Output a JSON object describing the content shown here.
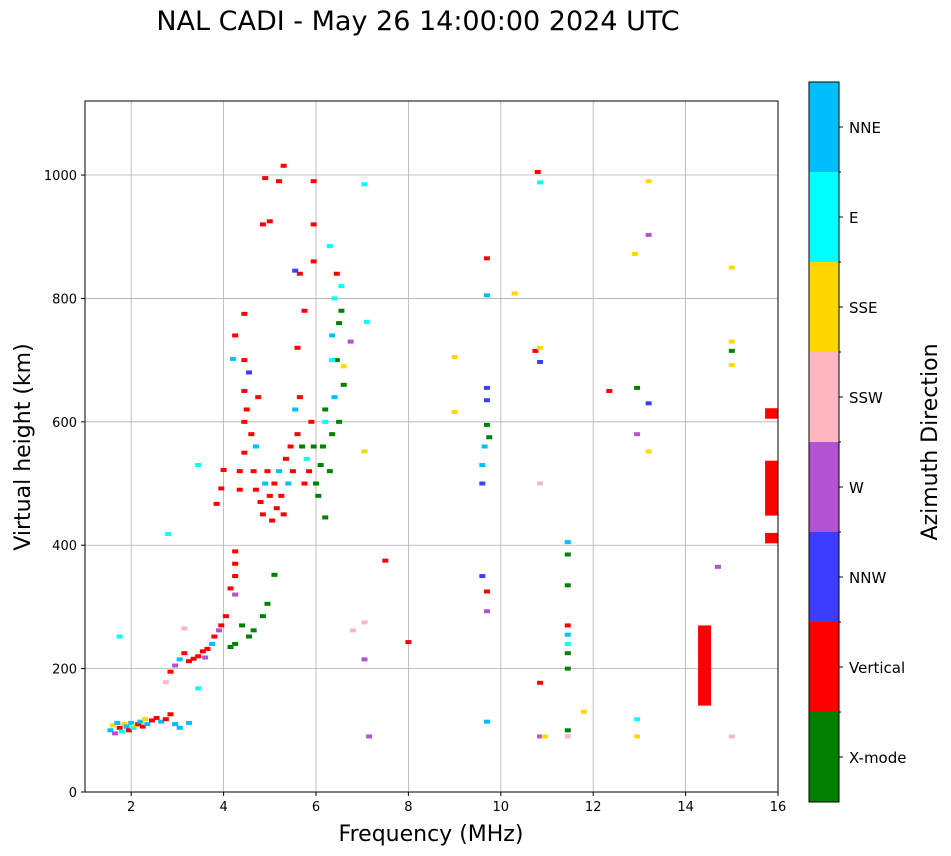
{
  "chart_data": {
    "type": "scatter",
    "title": "NAL CADI - May 26 14:00:00 2024 UTC",
    "xlabel": "Frequency (MHz)",
    "ylabel": "Virtual height (km)",
    "xlim": [
      1.0,
      16.0
    ],
    "ylim": [
      0,
      1120
    ],
    "xticks": [
      2,
      4,
      6,
      8,
      10,
      12,
      14,
      16
    ],
    "yticks": [
      0,
      200,
      400,
      600,
      800,
      1000
    ],
    "grid": true,
    "colorbar": {
      "label": "Azimuth Direction",
      "categories": [
        {
          "name": "X-mode",
          "color": "#008000"
        },
        {
          "name": "Vertical",
          "color": "#ff0000"
        },
        {
          "name": "NNW",
          "color": "#3d3dff"
        },
        {
          "name": "W",
          "color": "#b452d4"
        },
        {
          "name": "SSW",
          "color": "#ffb6c1"
        },
        {
          "name": "SSE",
          "color": "#ffd700"
        },
        {
          "name": "E",
          "color": "#00ffff"
        },
        {
          "name": "NNE",
          "color": "#00bfff"
        }
      ]
    },
    "points": [
      [
        1.55,
        100,
        "NNE"
      ],
      [
        1.6,
        108,
        "SSE"
      ],
      [
        1.65,
        95,
        "W"
      ],
      [
        1.7,
        112,
        "NNE"
      ],
      [
        1.75,
        104,
        "Vertical"
      ],
      [
        1.8,
        98,
        "E"
      ],
      [
        1.85,
        110,
        "SSE"
      ],
      [
        1.9,
        106,
        "NNE"
      ],
      [
        1.95,
        100,
        "Vertical"
      ],
      [
        2.0,
        112,
        "NNE"
      ],
      [
        2.05,
        104,
        "E"
      ],
      [
        2.1,
        108,
        "SSE"
      ],
      [
        2.15,
        110,
        "Vertical"
      ],
      [
        2.2,
        114,
        "NNE"
      ],
      [
        2.25,
        106,
        "Vertical"
      ],
      [
        2.3,
        118,
        "SSE"
      ],
      [
        2.35,
        110,
        "NNE"
      ],
      [
        2.45,
        116,
        "Vertical"
      ],
      [
        2.55,
        120,
        "Vertical"
      ],
      [
        2.65,
        114,
        "NNE"
      ],
      [
        2.75,
        118,
        "Vertical"
      ],
      [
        2.85,
        126,
        "Vertical"
      ],
      [
        2.95,
        110,
        "NNE"
      ],
      [
        3.05,
        104,
        "NNE"
      ],
      [
        3.25,
        112,
        "NNE"
      ],
      [
        1.75,
        252,
        "E"
      ],
      [
        2.8,
        418,
        "E"
      ],
      [
        3.45,
        168,
        "E"
      ],
      [
        3.45,
        530,
        "E"
      ],
      [
        2.75,
        178,
        "SSW"
      ],
      [
        2.85,
        195,
        "Vertical"
      ],
      [
        2.95,
        205,
        "W"
      ],
      [
        3.05,
        215,
        "NNE"
      ],
      [
        3.15,
        225,
        "Vertical"
      ],
      [
        3.15,
        265,
        "SSW"
      ],
      [
        3.25,
        212,
        "Vertical"
      ],
      [
        3.35,
        216,
        "Vertical"
      ],
      [
        3.45,
        220,
        "Vertical"
      ],
      [
        3.55,
        228,
        "Vertical"
      ],
      [
        3.6,
        218,
        "W"
      ],
      [
        3.65,
        232,
        "Vertical"
      ],
      [
        3.75,
        240,
        "NNE"
      ],
      [
        3.8,
        252,
        "Vertical"
      ],
      [
        3.9,
        262,
        "W"
      ],
      [
        3.95,
        270,
        "Vertical"
      ],
      [
        4.05,
        285,
        "Vertical"
      ],
      [
        4.15,
        235,
        "X-mode"
      ],
      [
        4.25,
        240,
        "X-mode"
      ],
      [
        4.25,
        320,
        "W"
      ],
      [
        4.25,
        350,
        "Vertical"
      ],
      [
        4.25,
        370,
        "Vertical"
      ],
      [
        4.25,
        390,
        "Vertical"
      ],
      [
        4.4,
        270,
        "X-mode"
      ],
      [
        4.55,
        252,
        "X-mode"
      ],
      [
        4.65,
        262,
        "X-mode"
      ],
      [
        4.85,
        285,
        "X-mode"
      ],
      [
        4.95,
        305,
        "X-mode"
      ],
      [
        5.1,
        352,
        "X-mode"
      ],
      [
        3.85,
        467,
        "Vertical"
      ],
      [
        3.95,
        492,
        "Vertical"
      ],
      [
        4.0,
        522,
        "Vertical"
      ],
      [
        4.25,
        740,
        "Vertical"
      ],
      [
        4.2,
        702,
        "NNE"
      ],
      [
        4.35,
        520,
        "Vertical"
      ],
      [
        4.35,
        490,
        "Vertical"
      ],
      [
        4.45,
        550,
        "Vertical"
      ],
      [
        4.45,
        600,
        "Vertical"
      ],
      [
        4.45,
        650,
        "Vertical"
      ],
      [
        4.45,
        700,
        "Vertical"
      ],
      [
        4.45,
        775,
        "Vertical"
      ],
      [
        4.5,
        620,
        "Vertical"
      ],
      [
        4.55,
        680,
        "NNW"
      ],
      [
        4.6,
        580,
        "Vertical"
      ],
      [
        4.65,
        520,
        "Vertical"
      ],
      [
        4.7,
        560,
        "NNE"
      ],
      [
        4.7,
        490,
        "Vertical"
      ],
      [
        4.75,
        640,
        "Vertical"
      ],
      [
        4.8,
        470,
        "Vertical"
      ],
      [
        4.85,
        450,
        "Vertical"
      ],
      [
        4.9,
        500,
        "NNE"
      ],
      [
        4.95,
        520,
        "Vertical"
      ],
      [
        5.0,
        480,
        "Vertical"
      ],
      [
        5.05,
        440,
        "Vertical"
      ],
      [
        5.1,
        500,
        "Vertical"
      ],
      [
        5.15,
        460,
        "Vertical"
      ],
      [
        5.2,
        520,
        "NNE"
      ],
      [
        5.25,
        480,
        "Vertical"
      ],
      [
        5.3,
        450,
        "Vertical"
      ],
      [
        5.35,
        540,
        "Vertical"
      ],
      [
        5.4,
        500,
        "NNE"
      ],
      [
        5.45,
        560,
        "Vertical"
      ],
      [
        5.5,
        520,
        "Vertical"
      ],
      [
        5.55,
        620,
        "NNE"
      ],
      [
        5.6,
        580,
        "Vertical"
      ],
      [
        5.65,
        640,
        "Vertical"
      ],
      [
        5.7,
        560,
        "X-mode"
      ],
      [
        5.75,
        500,
        "Vertical"
      ],
      [
        5.8,
        540,
        "E"
      ],
      [
        5.85,
        520,
        "Vertical"
      ],
      [
        5.9,
        600,
        "Vertical"
      ],
      [
        5.95,
        560,
        "X-mode"
      ],
      [
        6.0,
        500,
        "X-mode"
      ],
      [
        6.05,
        480,
        "X-mode"
      ],
      [
        6.1,
        530,
        "X-mode"
      ],
      [
        6.15,
        560,
        "X-mode"
      ],
      [
        6.2,
        600,
        "E"
      ],
      [
        6.2,
        620,
        "X-mode"
      ],
      [
        6.3,
        520,
        "X-mode"
      ],
      [
        6.35,
        580,
        "X-mode"
      ],
      [
        6.4,
        640,
        "NNE"
      ],
      [
        6.45,
        700,
        "X-mode"
      ],
      [
        6.5,
        760,
        "X-mode"
      ],
      [
        6.55,
        820,
        "E"
      ],
      [
        6.6,
        690,
        "SSE"
      ],
      [
        6.35,
        700,
        "E"
      ],
      [
        6.35,
        740,
        "NNE"
      ],
      [
        6.4,
        800,
        "E"
      ],
      [
        6.45,
        840,
        "Vertical"
      ],
      [
        6.3,
        885,
        "E"
      ],
      [
        6.55,
        780,
        "X-mode"
      ],
      [
        6.6,
        660,
        "X-mode"
      ],
      [
        6.5,
        600,
        "X-mode"
      ],
      [
        5.6,
        720,
        "Vertical"
      ],
      [
        5.75,
        780,
        "Vertical"
      ],
      [
        5.95,
        860,
        "Vertical"
      ],
      [
        5.95,
        920,
        "Vertical"
      ],
      [
        5.95,
        990,
        "Vertical"
      ],
      [
        5.65,
        840,
        "Vertical"
      ],
      [
        5.55,
        845,
        "NNW"
      ],
      [
        5.3,
        1015,
        "Vertical"
      ],
      [
        5.2,
        990,
        "Vertical"
      ],
      [
        4.85,
        920,
        "Vertical"
      ],
      [
        5.0,
        925,
        "Vertical"
      ],
      [
        4.9,
        995,
        "Vertical"
      ],
      [
        4.15,
        330,
        "Vertical"
      ],
      [
        6.2,
        445,
        "X-mode"
      ],
      [
        6.75,
        730,
        "W"
      ],
      [
        7.05,
        552,
        "SSE"
      ],
      [
        7.1,
        762,
        "E"
      ],
      [
        7.05,
        985,
        "E"
      ],
      [
        6.8,
        262,
        "SSW"
      ],
      [
        7.05,
        275,
        "SSW"
      ],
      [
        7.05,
        215,
        "W"
      ],
      [
        7.15,
        90,
        "W"
      ],
      [
        7.5,
        375,
        "Vertical"
      ],
      [
        8.0,
        243,
        "Vertical"
      ],
      [
        9.0,
        616,
        "SSE"
      ],
      [
        9.0,
        705,
        "SSE"
      ],
      [
        9.6,
        530,
        "NNE"
      ],
      [
        9.6,
        500,
        "NNW"
      ],
      [
        9.6,
        350,
        "NNW"
      ],
      [
        9.7,
        325,
        "Vertical"
      ],
      [
        9.7,
        293,
        "W"
      ],
      [
        9.7,
        114,
        "NNE"
      ],
      [
        9.7,
        865,
        "Vertical"
      ],
      [
        9.7,
        805,
        "NNE"
      ],
      [
        9.7,
        655,
        "NNW"
      ],
      [
        9.7,
        635,
        "NNW"
      ],
      [
        9.65,
        560,
        "NNE"
      ],
      [
        9.7,
        595,
        "X-mode"
      ],
      [
        9.75,
        575,
        "X-mode"
      ],
      [
        10.3,
        808,
        "SSE"
      ],
      [
        10.8,
        1005,
        "Vertical"
      ],
      [
        10.75,
        715,
        "Vertical"
      ],
      [
        10.85,
        988,
        "E"
      ],
      [
        10.85,
        720,
        "SSE"
      ],
      [
        10.85,
        697,
        "NNW"
      ],
      [
        10.85,
        500,
        "SSW"
      ],
      [
        10.85,
        177,
        "Vertical"
      ],
      [
        10.85,
        90,
        "W"
      ],
      [
        10.95,
        90,
        "SSE"
      ],
      [
        11.45,
        405,
        "NNE"
      ],
      [
        11.45,
        385,
        "X-mode"
      ],
      [
        11.45,
        335,
        "X-mode"
      ],
      [
        11.45,
        270,
        "Vertical"
      ],
      [
        11.45,
        255,
        "NNE"
      ],
      [
        11.45,
        240,
        "E"
      ],
      [
        11.45,
        225,
        "X-mode"
      ],
      [
        11.45,
        200,
        "X-mode"
      ],
      [
        11.45,
        100,
        "X-mode"
      ],
      [
        11.45,
        90,
        "SSW"
      ],
      [
        11.8,
        130,
        "SSE"
      ],
      [
        12.35,
        650,
        "Vertical"
      ],
      [
        12.9,
        872,
        "SSE"
      ],
      [
        12.95,
        655,
        "X-mode"
      ],
      [
        12.95,
        580,
        "W"
      ],
      [
        12.95,
        118,
        "E"
      ],
      [
        12.95,
        90,
        "SSE"
      ],
      [
        13.2,
        990,
        "SSE"
      ],
      [
        13.2,
        903,
        "W"
      ],
      [
        13.2,
        630,
        "NNW"
      ],
      [
        13.2,
        552,
        "SSE"
      ],
      [
        14.7,
        365,
        "W"
      ],
      [
        15.0,
        850,
        "SSE"
      ],
      [
        15.0,
        730,
        "SSE"
      ],
      [
        15.0,
        715,
        "X-mode"
      ],
      [
        15.0,
        692,
        "SSE"
      ],
      [
        15.0,
        90,
        "SSW"
      ]
    ],
    "bars": [
      {
        "x": 14.4,
        "y0": 140,
        "y1": 270,
        "category": "Vertical"
      },
      {
        "x": 15.85,
        "y0": 605,
        "y1": 622,
        "category": "Vertical"
      },
      {
        "x": 15.85,
        "y0": 448,
        "y1": 537,
        "category": "Vertical"
      },
      {
        "x": 15.85,
        "y0": 403,
        "y1": 420,
        "category": "Vertical"
      }
    ]
  }
}
